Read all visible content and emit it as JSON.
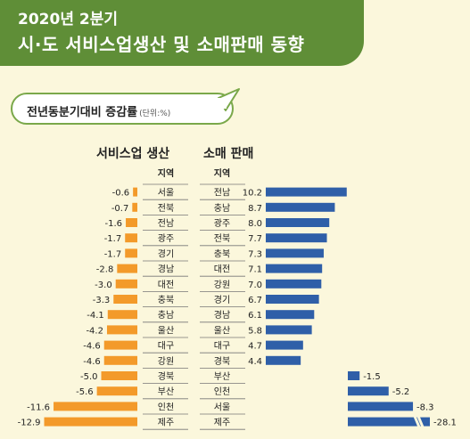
{
  "header": {
    "title_line1": "2020년 2분기",
    "title_line2": "시·도 서비스업생산 및 소매판매 동향"
  },
  "subtitle": {
    "label": "전년동분기대비 증감률",
    "unit": "(단위:%)"
  },
  "colors": {
    "banner": "#5f8e37",
    "service_bar": "#f39a2a",
    "retail_bar": "#2f5fa8",
    "bubble_border": "#7aa84a"
  },
  "chart_data": [
    {
      "type": "bar",
      "orientation": "horizontal",
      "title": "서비스업 생산",
      "column_header": "지역",
      "categories": [
        "서울",
        "전북",
        "전남",
        "광주",
        "경기",
        "경남",
        "대전",
        "충북",
        "충남",
        "울산",
        "대구",
        "강원",
        "경북",
        "부산",
        "인천",
        "제주"
      ],
      "values": [
        -0.6,
        -0.7,
        -1.6,
        -1.7,
        -1.7,
        -2.8,
        -3.0,
        -3.3,
        -4.1,
        -4.2,
        -4.6,
        -4.6,
        -5.0,
        -5.6,
        -11.6,
        -12.9
      ],
      "value_labels": [
        "-0.6",
        "-0.7",
        "-1.6",
        "-1.7",
        "-1.7",
        "-2.8",
        "-3.0",
        "-3.3",
        "-4.1",
        "-4.2",
        "-4.6",
        "-4.6",
        "-5.0",
        "-5.6",
        "-11.6",
        "-12.9"
      ]
    },
    {
      "type": "bar",
      "orientation": "horizontal",
      "title": "소매 판매",
      "column_header": "지역",
      "categories": [
        "전남",
        "충남",
        "광주",
        "전북",
        "충북",
        "대전",
        "강원",
        "경기",
        "경남",
        "울산",
        "대구",
        "경북",
        "부산",
        "인천",
        "서울",
        "제주"
      ],
      "values": [
        10.2,
        8.7,
        8.0,
        7.7,
        7.3,
        7.1,
        7.0,
        6.7,
        6.1,
        5.8,
        4.7,
        4.4,
        -1.5,
        -5.2,
        -8.3,
        -28.1
      ],
      "value_labels": [
        "10.2",
        "8.7",
        "8.0",
        "7.7",
        "7.3",
        "7.1",
        "7.0",
        "6.7",
        "6.1",
        "5.8",
        "4.7",
        "4.4",
        "-1.5",
        "-5.2",
        "-8.3",
        "-28.1"
      ],
      "axis_break": "제주 bar is truncated with a break mark"
    }
  ]
}
